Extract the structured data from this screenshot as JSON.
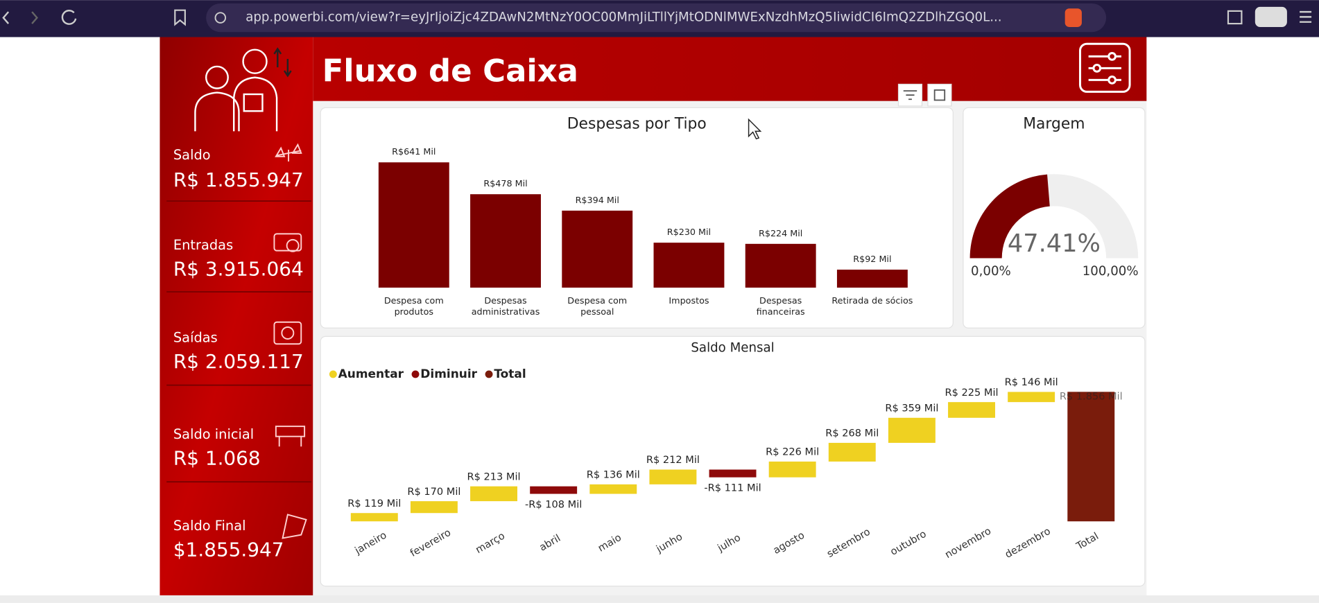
{
  "browser": {
    "url": "app.powerbi.com/view?r=eyJrIjoiZjc4ZDAwN2MtNzY0OC00MmJiLTllYjMtODNlMWExNzdhMzQ5IiwidCI6ImQ2ZDlhZGQ0L..."
  },
  "header": {
    "title": "Fluxo de Caixa"
  },
  "kpis": [
    {
      "label": "Saldo",
      "value": "R$ 1.855.947"
    },
    {
      "label": "Entradas",
      "value": "R$ 3.915.064"
    },
    {
      "label": "Saídas",
      "value": "R$ 2.059.117"
    },
    {
      "label": "Saldo inicial",
      "value": "R$ 1.068"
    },
    {
      "label": "Saldo Final",
      "value": "$1.855.947"
    }
  ],
  "despesas": {
    "title": "Despesas por Tipo",
    "categories": [
      "Despesa com produtos",
      "Despesas administrativas",
      "Despesa com pessoal",
      "Impostos",
      "Despesas financeiras",
      "Retirada de sócios"
    ],
    "values": [
      641,
      478,
      394,
      230,
      224,
      92
    ],
    "value_labels": [
      "R$641 Mil",
      "R$478 Mil",
      "R$394 Mil",
      "R$230 Mil",
      "R$224 Mil",
      "R$92 Mil"
    ],
    "color": "#7b0000"
  },
  "margem": {
    "title": "Margem",
    "value": 47.41,
    "value_label": "47.41%",
    "min": {
      "value": 0,
      "label": "0,00%"
    },
    "max": {
      "value": 100,
      "label": "100,00%"
    },
    "color": "#7b0000",
    "track_color": "#efefef"
  },
  "saldo_mensal": {
    "title": "Saldo Mensal",
    "legend": [
      {
        "name": "Aumentar",
        "color": "#efd121"
      },
      {
        "name": "Diminuir",
        "color": "#8e0a0a"
      },
      {
        "name": "Total",
        "color": "#7a1c0c"
      }
    ],
    "categories": [
      "janeiro",
      "fevereiro",
      "março",
      "abril",
      "maio",
      "junho",
      "julho",
      "agosto",
      "setembro",
      "outubro",
      "novembro",
      "dezembro"
    ],
    "values": [
      119,
      170,
      213,
      -108,
      136,
      212,
      -111,
      226,
      268,
      359,
      225,
      146
    ],
    "value_labels": [
      "R$ 119 Mil",
      "R$ 170 Mil",
      "R$ 213 Mil",
      "-R$ 108 Mil",
      "R$ 136 Mil",
      "R$ 212 Mil",
      "-R$ 111 Mil",
      "R$ 226 Mil",
      "R$ 268 Mil",
      "R$ 359 Mil",
      "R$ 225 Mil",
      "R$ 146 Mil"
    ],
    "total": {
      "category": "Total",
      "value": 1856,
      "value_label": "R$ 1.856 Mil"
    }
  }
}
